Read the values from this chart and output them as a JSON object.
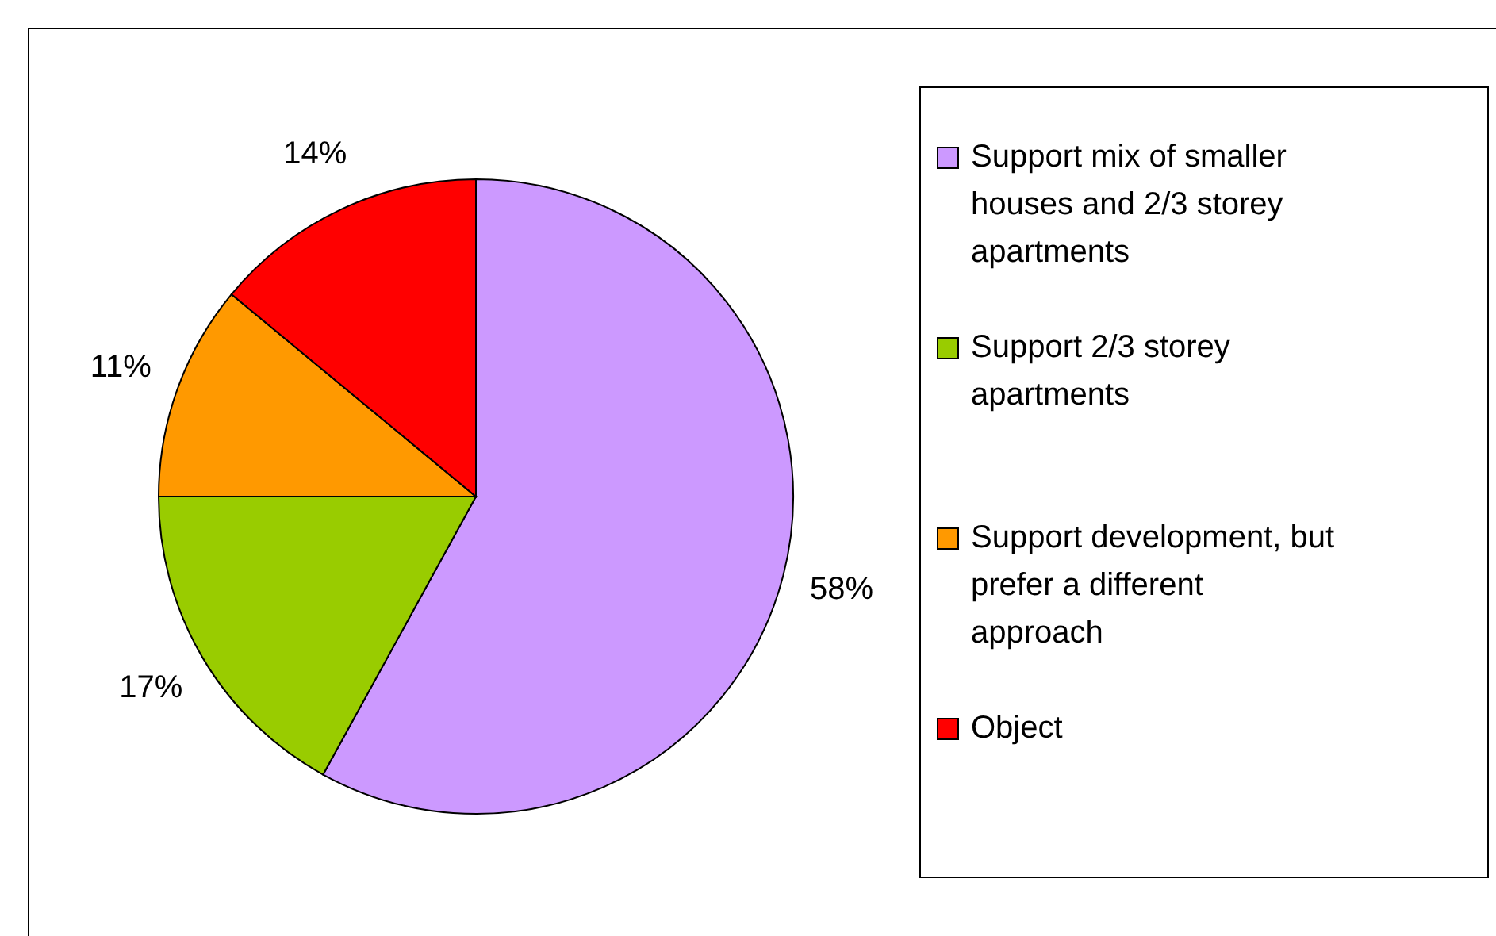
{
  "chart_data": {
    "type": "pie",
    "categories": [
      "Support mix of smaller houses and 2/3 storey apartments",
      "Support 2/3 storey apartments",
      "Support development, but prefer a different approach",
      "Object"
    ],
    "values": [
      58,
      17,
      11,
      14
    ],
    "colors": [
      "#cc99ff",
      "#99cc00",
      "#ff9900",
      "#ff0000"
    ],
    "value_labels": [
      "58%",
      "17%",
      "11%",
      "14%"
    ],
    "legend": "right"
  }
}
